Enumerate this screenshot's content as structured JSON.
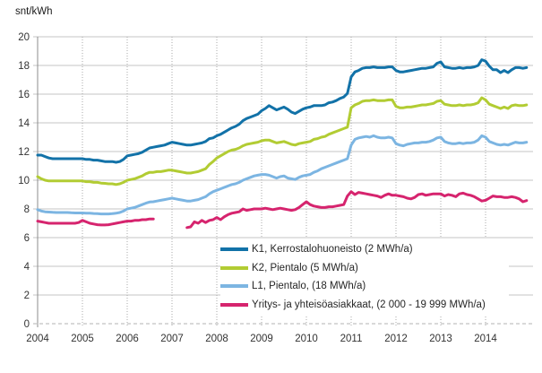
{
  "unit_label": "snt/kWh",
  "colors": {
    "background": "#ffffff",
    "grid_horizontal": "#c6c6c6",
    "grid_vertical": "#aaaaaa",
    "axis_line": "#8c8c8c",
    "zero_line": "#b3b3b3",
    "tick_text": "#333333",
    "legend_text": "#262626"
  },
  "chart_data": {
    "type": "line",
    "title": "snt/kWh",
    "xlabel": "",
    "ylabel": "snt/kWh",
    "ylim": [
      0,
      20
    ],
    "y_tick_step": 2,
    "y_ticks": [
      0,
      2,
      4,
      6,
      8,
      10,
      12,
      14,
      16,
      18,
      20
    ],
    "x_tick_labels": [
      "2004",
      "2005",
      "2006",
      "2007",
      "2008",
      "2009",
      "2010",
      "2011",
      "2012",
      "2013",
      "2014"
    ],
    "x_start": "2004-01",
    "x_end": "2014-12",
    "frequency": "monthly",
    "grid": "horizontal solid lines every 2 units, vertical dotted lines at each year",
    "legend_position": "inside-bottom-right",
    "note": "Yritys series has a data gap from 2006-09 to 2007-04 (null values)",
    "series": [
      {
        "id": "k1",
        "label": "K1, Kerrostalohuoneisto (2 MWh/a)",
        "color": "#1272a8",
        "values": [
          11.75,
          11.75,
          11.65,
          11.55,
          11.5,
          11.5,
          11.5,
          11.5,
          11.5,
          11.5,
          11.5,
          11.5,
          11.5,
          11.45,
          11.45,
          11.4,
          11.4,
          11.35,
          11.3,
          11.3,
          11.3,
          11.25,
          11.3,
          11.45,
          11.7,
          11.75,
          11.8,
          11.85,
          11.95,
          12.1,
          12.25,
          12.3,
          12.35,
          12.4,
          12.45,
          12.55,
          12.65,
          12.6,
          12.55,
          12.5,
          12.45,
          12.45,
          12.5,
          12.55,
          12.6,
          12.7,
          12.9,
          12.95,
          13.1,
          13.2,
          13.35,
          13.5,
          13.65,
          13.75,
          13.9,
          14.15,
          14.3,
          14.4,
          14.5,
          14.6,
          14.85,
          15.0,
          15.2,
          15.05,
          14.9,
          15.0,
          15.1,
          14.95,
          14.75,
          14.65,
          14.8,
          14.95,
          15.05,
          15.1,
          15.2,
          15.2,
          15.2,
          15.25,
          15.4,
          15.45,
          15.55,
          15.7,
          15.8,
          16.05,
          17.2,
          17.55,
          17.65,
          17.8,
          17.85,
          17.85,
          17.9,
          17.85,
          17.85,
          17.85,
          17.9,
          17.9,
          17.65,
          17.55,
          17.55,
          17.6,
          17.65,
          17.7,
          17.75,
          17.8,
          17.8,
          17.85,
          17.9,
          18.15,
          18.25,
          17.9,
          17.85,
          17.8,
          17.8,
          17.85,
          17.8,
          17.85,
          17.85,
          17.9,
          18.0,
          18.4,
          18.3,
          17.95,
          17.7,
          17.7,
          17.5,
          17.65,
          17.5,
          17.7,
          17.85,
          17.85,
          17.8,
          17.85
        ]
      },
      {
        "id": "k2",
        "label": "K2, Pientalo  (5 MWh/a)",
        "color": "#b2cc33",
        "values": [
          10.25,
          10.1,
          10.0,
          9.95,
          9.95,
          9.95,
          9.95,
          9.95,
          9.95,
          9.95,
          9.95,
          9.95,
          9.95,
          9.9,
          9.9,
          9.85,
          9.85,
          9.8,
          9.78,
          9.75,
          9.75,
          9.7,
          9.75,
          9.85,
          10.0,
          10.05,
          10.1,
          10.2,
          10.3,
          10.45,
          10.55,
          10.55,
          10.6,
          10.6,
          10.65,
          10.7,
          10.7,
          10.65,
          10.6,
          10.55,
          10.5,
          10.5,
          10.55,
          10.6,
          10.7,
          10.8,
          11.1,
          11.3,
          11.55,
          11.7,
          11.85,
          12.0,
          12.1,
          12.15,
          12.25,
          12.4,
          12.5,
          12.55,
          12.6,
          12.65,
          12.75,
          12.8,
          12.8,
          12.7,
          12.6,
          12.65,
          12.7,
          12.6,
          12.5,
          12.45,
          12.55,
          12.6,
          12.65,
          12.7,
          12.85,
          12.9,
          13.0,
          13.05,
          13.2,
          13.3,
          13.4,
          13.5,
          13.6,
          13.7,
          15.05,
          15.25,
          15.35,
          15.5,
          15.55,
          15.55,
          15.6,
          15.55,
          15.55,
          15.55,
          15.6,
          15.6,
          15.15,
          15.05,
          15.05,
          15.1,
          15.1,
          15.15,
          15.2,
          15.25,
          15.25,
          15.3,
          15.35,
          15.5,
          15.55,
          15.3,
          15.25,
          15.2,
          15.2,
          15.25,
          15.2,
          15.25,
          15.25,
          15.3,
          15.4,
          15.75,
          15.6,
          15.3,
          15.2,
          15.1,
          15.0,
          15.1,
          15.0,
          15.2,
          15.25,
          15.2,
          15.2,
          15.25
        ]
      },
      {
        "id": "l1",
        "label": "L1, Pientalo, (18 MWh/a)",
        "color": "#7cb5e2",
        "values": [
          7.95,
          7.85,
          7.8,
          7.78,
          7.76,
          7.75,
          7.75,
          7.75,
          7.75,
          7.73,
          7.72,
          7.72,
          7.72,
          7.7,
          7.7,
          7.68,
          7.67,
          7.65,
          7.65,
          7.65,
          7.67,
          7.7,
          7.75,
          7.85,
          8.0,
          8.05,
          8.1,
          8.2,
          8.3,
          8.4,
          8.48,
          8.5,
          8.55,
          8.6,
          8.65,
          8.7,
          8.75,
          8.7,
          8.65,
          8.6,
          8.55,
          8.55,
          8.6,
          8.65,
          8.75,
          8.85,
          9.05,
          9.2,
          9.3,
          9.4,
          9.5,
          9.6,
          9.7,
          9.75,
          9.85,
          10.0,
          10.1,
          10.2,
          10.3,
          10.35,
          10.4,
          10.4,
          10.35,
          10.25,
          10.15,
          10.25,
          10.3,
          10.15,
          10.1,
          10.05,
          10.2,
          10.3,
          10.35,
          10.4,
          10.55,
          10.65,
          10.8,
          10.9,
          11.0,
          11.1,
          11.2,
          11.3,
          11.4,
          11.5,
          12.45,
          12.85,
          12.95,
          13.0,
          13.05,
          13.0,
          13.1,
          13.0,
          12.95,
          12.95,
          13.0,
          12.95,
          12.55,
          12.45,
          12.4,
          12.5,
          12.55,
          12.6,
          12.6,
          12.65,
          12.65,
          12.7,
          12.8,
          12.95,
          13.0,
          12.7,
          12.6,
          12.55,
          12.55,
          12.6,
          12.55,
          12.6,
          12.6,
          12.65,
          12.8,
          13.1,
          13.0,
          12.7,
          12.6,
          12.5,
          12.45,
          12.5,
          12.45,
          12.55,
          12.65,
          12.6,
          12.6,
          12.65
        ]
      },
      {
        "id": "yritys",
        "label": "Yritys- ja yhteisöasiakkaat, (2 000 - 19 999 MWh/a)",
        "color": "#d6246e",
        "values": [
          7.15,
          7.1,
          7.05,
          7.0,
          7.0,
          7.0,
          7.0,
          7.0,
          7.0,
          7.0,
          7.0,
          7.05,
          7.2,
          7.1,
          7.0,
          6.95,
          6.9,
          6.88,
          6.88,
          6.9,
          6.95,
          7.0,
          7.05,
          7.1,
          7.15,
          7.15,
          7.2,
          7.2,
          7.25,
          7.25,
          7.3,
          7.3,
          null,
          null,
          null,
          null,
          null,
          null,
          null,
          null,
          6.7,
          6.75,
          7.1,
          7.0,
          7.2,
          7.05,
          7.2,
          7.25,
          7.4,
          7.25,
          7.45,
          7.6,
          7.7,
          7.75,
          7.8,
          8.0,
          7.9,
          7.95,
          8.0,
          8.0,
          8.0,
          8.05,
          8.0,
          7.95,
          8.0,
          8.05,
          8.0,
          7.95,
          7.9,
          7.95,
          8.1,
          8.3,
          8.5,
          8.3,
          8.2,
          8.15,
          8.1,
          8.1,
          8.15,
          8.15,
          8.2,
          8.25,
          8.3,
          8.9,
          9.2,
          9.0,
          9.15,
          9.1,
          9.05,
          9.0,
          8.95,
          8.9,
          8.8,
          8.95,
          9.05,
          8.95,
          8.95,
          8.9,
          8.85,
          8.75,
          8.7,
          8.8,
          9.0,
          9.05,
          8.95,
          9.0,
          9.05,
          9.05,
          9.05,
          8.9,
          9.0,
          8.95,
          8.85,
          9.05,
          9.1,
          9.0,
          8.95,
          8.85,
          8.7,
          8.55,
          8.6,
          8.75,
          8.9,
          8.85,
          8.85,
          8.8,
          8.8,
          8.85,
          8.8,
          8.7,
          8.5,
          8.58
        ]
      }
    ]
  }
}
